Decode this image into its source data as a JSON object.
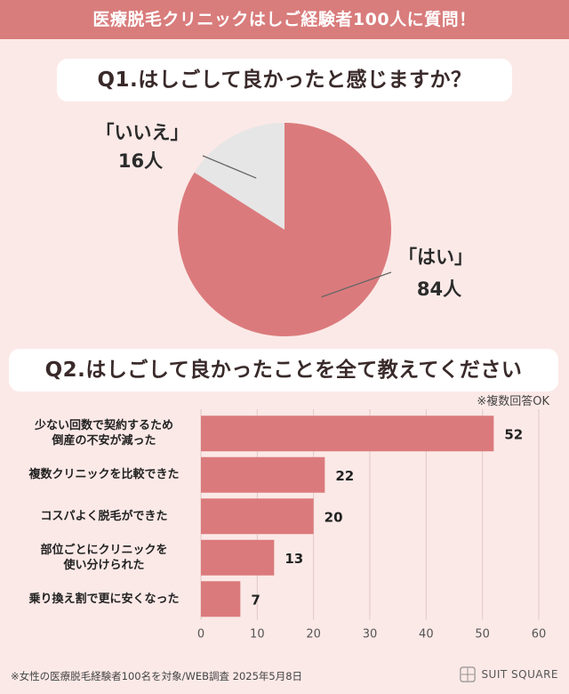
{
  "header": {
    "title": "医療脱毛クリニックはしご経験者100人に質問！"
  },
  "q1": {
    "question": "Q1.はしごして良かったと感じますか？",
    "chart_data": {
      "type": "pie",
      "slices": [
        {
          "name_label": "「はい」",
          "count_label": "84人",
          "value": 84,
          "color": "#db7a7c"
        },
        {
          "name_label": "「いいえ」",
          "count_label": "16人",
          "value": 16,
          "color": "#e6e6e6"
        }
      ]
    }
  },
  "q2": {
    "question": "Q2.はしごして良かったことを全て教えてください",
    "note": "※複数回答OK",
    "chart_data": {
      "type": "bar",
      "orientation": "horizontal",
      "categories": [
        "少ない回数で契約するため\n倒産の不安が減った",
        "複数クリニックを比較できた",
        "コスパよく脱毛ができた",
        "部位ごとにクリニックを\n使い分けられた",
        "乗り換え割で更に安くなった"
      ],
      "values": [
        52,
        22,
        20,
        13,
        7
      ],
      "xlim": [
        0,
        60
      ],
      "xticks": [
        0,
        10,
        20,
        30,
        40,
        50,
        60
      ],
      "grid": true,
      "bar_color": "#db7a7c"
    }
  },
  "footer": {
    "note": "※女性の医療脱毛経験者100名を対象/WEB調査 2025年5月8日",
    "brand": "SUIT SQUARE"
  }
}
